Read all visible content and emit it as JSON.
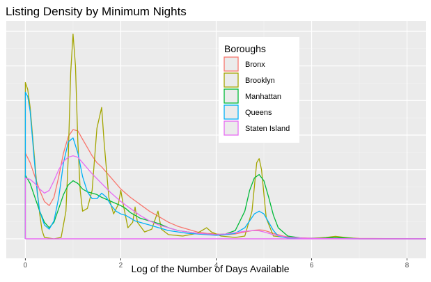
{
  "chart_data": {
    "type": "line",
    "title": "Listing Density by Minimum Nights",
    "xlabel": "Log of the Number of Days Available",
    "ylabel": "",
    "xlim": [
      -0.4,
      8.4
    ],
    "ylim": [
      0,
      1.62
    ],
    "x_ticks": [
      0,
      2,
      4,
      6,
      8
    ],
    "x_tick_labels": [
      "0",
      "2",
      "4",
      "6",
      "8"
    ],
    "y_tick_labels": [],
    "grid": true,
    "legend": {
      "title": "Boroughs",
      "position": "top-right"
    },
    "series": [
      {
        "name": "Bronx",
        "color": "#F8766D",
        "points": [
          [
            0,
            0.62
          ],
          [
            0.1,
            0.55
          ],
          [
            0.2,
            0.45
          ],
          [
            0.3,
            0.35
          ],
          [
            0.4,
            0.27
          ],
          [
            0.5,
            0.24
          ],
          [
            0.6,
            0.3
          ],
          [
            0.7,
            0.45
          ],
          [
            0.8,
            0.62
          ],
          [
            0.9,
            0.74
          ],
          [
            1.0,
            0.79
          ],
          [
            1.1,
            0.78
          ],
          [
            1.2,
            0.72
          ],
          [
            1.3,
            0.66
          ],
          [
            1.4,
            0.6
          ],
          [
            1.5,
            0.55
          ],
          [
            1.6,
            0.52
          ],
          [
            1.8,
            0.44
          ],
          [
            2.0,
            0.36
          ],
          [
            2.2,
            0.3
          ],
          [
            2.4,
            0.25
          ],
          [
            2.6,
            0.2
          ],
          [
            2.8,
            0.16
          ],
          [
            3.0,
            0.12
          ],
          [
            3.2,
            0.09
          ],
          [
            3.4,
            0.07
          ],
          [
            3.6,
            0.05
          ],
          [
            3.8,
            0.04
          ],
          [
            4.0,
            0.035
          ],
          [
            4.2,
            0.03
          ],
          [
            4.4,
            0.035
          ],
          [
            4.6,
            0.05
          ],
          [
            4.8,
            0.062
          ],
          [
            4.9,
            0.065
          ],
          [
            5.0,
            0.062
          ],
          [
            5.2,
            0.04
          ],
          [
            5.4,
            0.02
          ],
          [
            5.6,
            0.008
          ],
          [
            6.0,
            0.005
          ],
          [
            6.5,
            0.01
          ],
          [
            7.0,
            0.003
          ],
          [
            8.4,
            0.0
          ]
        ]
      },
      {
        "name": "Brooklyn",
        "color": "#A3A500",
        "points": [
          [
            0,
            1.13
          ],
          [
            0.05,
            1.08
          ],
          [
            0.1,
            0.95
          ],
          [
            0.15,
            0.75
          ],
          [
            0.2,
            0.55
          ],
          [
            0.25,
            0.35
          ],
          [
            0.3,
            0.18
          ],
          [
            0.35,
            0.06
          ],
          [
            0.4,
            0.01
          ],
          [
            0.6,
            0.0
          ],
          [
            0.75,
            0.01
          ],
          [
            0.85,
            0.2
          ],
          [
            0.9,
            0.6
          ],
          [
            0.95,
            1.2
          ],
          [
            1.0,
            1.48
          ],
          [
            1.05,
            1.25
          ],
          [
            1.1,
            0.7
          ],
          [
            1.15,
            0.35
          ],
          [
            1.2,
            0.2
          ],
          [
            1.3,
            0.22
          ],
          [
            1.4,
            0.35
          ],
          [
            1.5,
            0.8
          ],
          [
            1.6,
            0.95
          ],
          [
            1.65,
            0.7
          ],
          [
            1.75,
            0.3
          ],
          [
            1.85,
            0.18
          ],
          [
            1.95,
            0.25
          ],
          [
            2.0,
            0.35
          ],
          [
            2.05,
            0.25
          ],
          [
            2.15,
            0.08
          ],
          [
            2.25,
            0.12
          ],
          [
            2.3,
            0.23
          ],
          [
            2.35,
            0.12
          ],
          [
            2.5,
            0.05
          ],
          [
            2.65,
            0.07
          ],
          [
            2.78,
            0.2
          ],
          [
            2.85,
            0.07
          ],
          [
            3.0,
            0.03
          ],
          [
            3.3,
            0.02
          ],
          [
            3.6,
            0.04
          ],
          [
            3.8,
            0.08
          ],
          [
            3.9,
            0.05
          ],
          [
            4.1,
            0.02
          ],
          [
            4.4,
            0.01
          ],
          [
            4.6,
            0.02
          ],
          [
            4.75,
            0.2
          ],
          [
            4.85,
            0.55
          ],
          [
            4.9,
            0.58
          ],
          [
            4.95,
            0.5
          ],
          [
            5.05,
            0.15
          ],
          [
            5.2,
            0.02
          ],
          [
            5.5,
            0.01
          ],
          [
            6.0,
            0.003
          ],
          [
            6.3,
            0.01
          ],
          [
            6.5,
            0.018
          ],
          [
            6.7,
            0.01
          ],
          [
            7.0,
            0.0
          ],
          [
            8.4,
            0.0
          ]
        ]
      },
      {
        "name": "Manhattan",
        "color": "#00BA38",
        "points": [
          [
            0,
            0.46
          ],
          [
            0.1,
            0.4
          ],
          [
            0.2,
            0.3
          ],
          [
            0.3,
            0.2
          ],
          [
            0.4,
            0.12
          ],
          [
            0.5,
            0.08
          ],
          [
            0.6,
            0.12
          ],
          [
            0.7,
            0.22
          ],
          [
            0.8,
            0.32
          ],
          [
            0.9,
            0.39
          ],
          [
            1.0,
            0.42
          ],
          [
            1.1,
            0.4
          ],
          [
            1.2,
            0.36
          ],
          [
            1.3,
            0.34
          ],
          [
            1.4,
            0.33
          ],
          [
            1.5,
            0.32
          ],
          [
            1.6,
            0.3
          ],
          [
            1.8,
            0.27
          ],
          [
            2.0,
            0.24
          ],
          [
            2.1,
            0.22
          ],
          [
            2.2,
            0.19
          ],
          [
            2.3,
            0.17
          ],
          [
            2.4,
            0.15
          ],
          [
            2.6,
            0.13
          ],
          [
            2.8,
            0.11
          ],
          [
            3.0,
            0.08
          ],
          [
            3.2,
            0.06
          ],
          [
            3.4,
            0.05
          ],
          [
            3.6,
            0.04
          ],
          [
            3.8,
            0.035
          ],
          [
            4.0,
            0.03
          ],
          [
            4.2,
            0.035
          ],
          [
            4.4,
            0.06
          ],
          [
            4.6,
            0.2
          ],
          [
            4.7,
            0.35
          ],
          [
            4.8,
            0.44
          ],
          [
            4.9,
            0.465
          ],
          [
            5.0,
            0.42
          ],
          [
            5.1,
            0.3
          ],
          [
            5.2,
            0.17
          ],
          [
            5.3,
            0.08
          ],
          [
            5.5,
            0.02
          ],
          [
            5.8,
            0.005
          ],
          [
            6.0,
            0.0
          ],
          [
            6.5,
            0.01
          ],
          [
            7.0,
            0.0
          ],
          [
            8.4,
            0.0
          ]
        ]
      },
      {
        "name": "Queens",
        "color": "#00B0F6",
        "points": [
          [
            0,
            1.06
          ],
          [
            0.05,
            1.03
          ],
          [
            0.1,
            0.92
          ],
          [
            0.15,
            0.72
          ],
          [
            0.2,
            0.52
          ],
          [
            0.25,
            0.33
          ],
          [
            0.3,
            0.2
          ],
          [
            0.4,
            0.1
          ],
          [
            0.5,
            0.07
          ],
          [
            0.6,
            0.13
          ],
          [
            0.7,
            0.3
          ],
          [
            0.8,
            0.55
          ],
          [
            0.9,
            0.7
          ],
          [
            1.0,
            0.73
          ],
          [
            1.1,
            0.62
          ],
          [
            1.2,
            0.45
          ],
          [
            1.3,
            0.34
          ],
          [
            1.4,
            0.29
          ],
          [
            1.5,
            0.29
          ],
          [
            1.6,
            0.33
          ],
          [
            1.7,
            0.3
          ],
          [
            1.8,
            0.24
          ],
          [
            1.9,
            0.2
          ],
          [
            2.0,
            0.18
          ],
          [
            2.1,
            0.17
          ],
          [
            2.2,
            0.15
          ],
          [
            2.3,
            0.13
          ],
          [
            2.4,
            0.12
          ],
          [
            2.6,
            0.1
          ],
          [
            2.8,
            0.08
          ],
          [
            3.0,
            0.06
          ],
          [
            3.2,
            0.05
          ],
          [
            3.4,
            0.04
          ],
          [
            3.6,
            0.035
          ],
          [
            3.8,
            0.03
          ],
          [
            4.0,
            0.025
          ],
          [
            4.2,
            0.03
          ],
          [
            4.4,
            0.04
          ],
          [
            4.6,
            0.08
          ],
          [
            4.7,
            0.13
          ],
          [
            4.8,
            0.18
          ],
          [
            4.9,
            0.2
          ],
          [
            5.0,
            0.18
          ],
          [
            5.1,
            0.12
          ],
          [
            5.2,
            0.06
          ],
          [
            5.3,
            0.02
          ],
          [
            5.5,
            0.005
          ],
          [
            6.0,
            0.003
          ],
          [
            7.0,
            0.0
          ],
          [
            8.4,
            0.0
          ]
        ]
      },
      {
        "name": "Staten Island",
        "color": "#E76BF3",
        "points": [
          [
            0,
            0.44
          ],
          [
            0.1,
            0.43
          ],
          [
            0.2,
            0.4
          ],
          [
            0.3,
            0.36
          ],
          [
            0.4,
            0.33
          ],
          [
            0.5,
            0.35
          ],
          [
            0.6,
            0.42
          ],
          [
            0.7,
            0.5
          ],
          [
            0.8,
            0.56
          ],
          [
            0.9,
            0.59
          ],
          [
            1.0,
            0.6
          ],
          [
            1.1,
            0.59
          ],
          [
            1.2,
            0.55
          ],
          [
            1.3,
            0.51
          ],
          [
            1.4,
            0.47
          ],
          [
            1.6,
            0.4
          ],
          [
            1.8,
            0.33
          ],
          [
            2.0,
            0.27
          ],
          [
            2.2,
            0.22
          ],
          [
            2.4,
            0.17
          ],
          [
            2.6,
            0.13
          ],
          [
            2.8,
            0.1
          ],
          [
            3.0,
            0.08
          ],
          [
            3.2,
            0.06
          ],
          [
            3.4,
            0.05
          ],
          [
            3.6,
            0.04
          ],
          [
            3.8,
            0.035
          ],
          [
            4.0,
            0.03
          ],
          [
            4.2,
            0.035
          ],
          [
            4.4,
            0.045
          ],
          [
            4.6,
            0.055
          ],
          [
            4.8,
            0.06
          ],
          [
            4.9,
            0.058
          ],
          [
            5.0,
            0.05
          ],
          [
            5.2,
            0.03
          ],
          [
            5.5,
            0.01
          ],
          [
            6.0,
            0.003
          ],
          [
            7.0,
            0.0
          ],
          [
            8.4,
            0.0
          ]
        ]
      }
    ]
  }
}
